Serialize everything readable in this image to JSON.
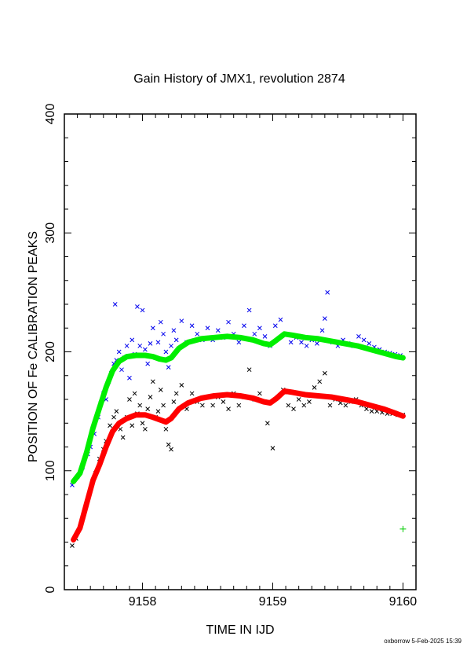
{
  "chart_data": {
    "type": "scatter",
    "title": "Gain History of JMX1, revolution 2874",
    "xlabel": "TIME IN IJD",
    "ylabel": "POSITION OF Fe CALIBRATION PEAKS",
    "xlim": [
      9157.4,
      9160.1
    ],
    "ylim": [
      0,
      400
    ],
    "x_ticks": [
      9158,
      9159,
      9160
    ],
    "x_tick_labels": [
      "9158",
      "9159",
      "9160"
    ],
    "y_ticks": [
      0,
      100,
      200,
      300,
      400
    ],
    "y_tick_labels": [
      "0",
      "100",
      "200",
      "300",
      "400"
    ],
    "footer": "oxborrow  5-Feb-2025 15:39",
    "series": [
      {
        "role": "fit",
        "color": "#00ee00",
        "points": [
          [
            9157.47,
            91
          ],
          [
            9157.52,
            98
          ],
          [
            9157.57,
            115
          ],
          [
            9157.62,
            136
          ],
          [
            9157.67,
            153
          ],
          [
            9157.72,
            170
          ],
          [
            9157.77,
            184
          ],
          [
            9157.82,
            192
          ],
          [
            9157.88,
            196
          ],
          [
            9157.95,
            197
          ],
          [
            9158.02,
            197
          ],
          [
            9158.08,
            196
          ],
          [
            9158.13,
            194
          ],
          [
            9158.18,
            193
          ],
          [
            9158.22,
            195
          ],
          [
            9158.28,
            203
          ],
          [
            9158.35,
            208
          ],
          [
            9158.45,
            211
          ],
          [
            9158.55,
            212
          ],
          [
            9158.65,
            213
          ],
          [
            9158.75,
            212
          ],
          [
            9158.85,
            210
          ],
          [
            9158.93,
            207
          ],
          [
            9158.98,
            206
          ],
          [
            9159.03,
            210
          ],
          [
            9159.09,
            215
          ],
          [
            9159.15,
            214
          ],
          [
            9159.25,
            212
          ],
          [
            9159.35,
            211
          ],
          [
            9159.45,
            209
          ],
          [
            9159.55,
            207
          ],
          [
            9159.65,
            205
          ],
          [
            9159.75,
            202
          ],
          [
            9159.85,
            199
          ],
          [
            9159.95,
            196
          ],
          [
            9160.0,
            195
          ]
        ]
      },
      {
        "role": "fit",
        "color": "#ff0000",
        "points": [
          [
            9157.47,
            42
          ],
          [
            9157.52,
            52
          ],
          [
            9157.57,
            72
          ],
          [
            9157.62,
            92
          ],
          [
            9157.67,
            105
          ],
          [
            9157.72,
            120
          ],
          [
            9157.77,
            133
          ],
          [
            9157.82,
            140
          ],
          [
            9157.88,
            144
          ],
          [
            9157.95,
            147
          ],
          [
            9158.02,
            147
          ],
          [
            9158.08,
            145
          ],
          [
            9158.13,
            143
          ],
          [
            9158.18,
            141
          ],
          [
            9158.22,
            144
          ],
          [
            9158.28,
            152
          ],
          [
            9158.35,
            157
          ],
          [
            9158.45,
            161
          ],
          [
            9158.55,
            163
          ],
          [
            9158.65,
            164
          ],
          [
            9158.75,
            163
          ],
          [
            9158.85,
            161
          ],
          [
            9158.93,
            158
          ],
          [
            9158.98,
            157
          ],
          [
            9159.03,
            161
          ],
          [
            9159.09,
            167
          ],
          [
            9159.15,
            166
          ],
          [
            9159.25,
            164
          ],
          [
            9159.35,
            163
          ],
          [
            9159.45,
            162
          ],
          [
            9159.55,
            160
          ],
          [
            9159.65,
            158
          ],
          [
            9159.75,
            155
          ],
          [
            9159.85,
            152
          ],
          [
            9159.95,
            148
          ],
          [
            9160.0,
            146
          ]
        ]
      },
      {
        "role": "upper-peak-measurements",
        "color": "#0000ee",
        "points": [
          [
            9157.46,
            88
          ],
          [
            9157.5,
            95
          ],
          [
            9157.54,
            103
          ],
          [
            9157.58,
            114
          ],
          [
            9157.6,
            120
          ],
          [
            9157.63,
            131
          ],
          [
            9157.66,
            145
          ],
          [
            9157.68,
            157
          ],
          [
            9157.7,
            165
          ],
          [
            9157.72,
            160
          ],
          [
            9157.74,
            175
          ],
          [
            9157.76,
            182
          ],
          [
            9157.78,
            190
          ],
          [
            9157.79,
            240
          ],
          [
            9157.8,
            193
          ],
          [
            9157.82,
            200
          ],
          [
            9157.84,
            185
          ],
          [
            9157.86,
            195
          ],
          [
            9157.88,
            205
          ],
          [
            9157.9,
            178
          ],
          [
            9157.92,
            210
          ],
          [
            9157.94,
            198
          ],
          [
            9157.96,
            238
          ],
          [
            9157.98,
            205
          ],
          [
            9158.0,
            235
          ],
          [
            9158.02,
            202
          ],
          [
            9158.04,
            190
          ],
          [
            9158.06,
            207
          ],
          [
            9158.08,
            220
          ],
          [
            9158.1,
            195
          ],
          [
            9158.12,
            208
          ],
          [
            9158.14,
            225
          ],
          [
            9158.16,
            215
          ],
          [
            9158.18,
            200
          ],
          [
            9158.2,
            187
          ],
          [
            9158.22,
            205
          ],
          [
            9158.24,
            218
          ],
          [
            9158.26,
            210
          ],
          [
            9158.3,
            226
          ],
          [
            9158.34,
            208
          ],
          [
            9158.38,
            222
          ],
          [
            9158.42,
            215
          ],
          [
            9158.46,
            210
          ],
          [
            9158.5,
            220
          ],
          [
            9158.54,
            210
          ],
          [
            9158.58,
            218
          ],
          [
            9158.62,
            212
          ],
          [
            9158.66,
            225
          ],
          [
            9158.7,
            215
          ],
          [
            9158.74,
            208
          ],
          [
            9158.78,
            222
          ],
          [
            9158.82,
            235
          ],
          [
            9158.86,
            215
          ],
          [
            9158.9,
            220
          ],
          [
            9158.94,
            213
          ],
          [
            9158.98,
            205
          ],
          [
            9159.02,
            222
          ],
          [
            9159.06,
            227
          ],
          [
            9159.1,
            215
          ],
          [
            9159.14,
            208
          ],
          [
            9159.18,
            212
          ],
          [
            9159.22,
            208
          ],
          [
            9159.26,
            205
          ],
          [
            9159.3,
            210
          ],
          [
            9159.34,
            207
          ],
          [
            9159.38,
            218
          ],
          [
            9159.4,
            228
          ],
          [
            9159.42,
            250
          ],
          [
            9159.46,
            208
          ],
          [
            9159.5,
            205
          ],
          [
            9159.54,
            210
          ],
          [
            9159.58,
            207
          ],
          [
            9159.62,
            205
          ],
          [
            9159.66,
            213
          ],
          [
            9159.7,
            210
          ],
          [
            9159.74,
            207
          ],
          [
            9159.78,
            204
          ],
          [
            9159.82,
            202
          ],
          [
            9159.86,
            200
          ],
          [
            9159.9,
            199
          ],
          [
            9159.94,
            198
          ],
          [
            9159.98,
            197
          ]
        ]
      },
      {
        "role": "lower-peak-measurements",
        "color": "#000000",
        "points": [
          [
            9157.46,
            37
          ],
          [
            9157.49,
            43
          ],
          [
            9157.52,
            52
          ],
          [
            9157.55,
            64
          ],
          [
            9157.58,
            76
          ],
          [
            9157.61,
            88
          ],
          [
            9157.64,
            98
          ],
          [
            9157.67,
            110
          ],
          [
            9157.7,
            118
          ],
          [
            9157.72,
            125
          ],
          [
            9157.75,
            138
          ],
          [
            9157.78,
            145
          ],
          [
            9157.8,
            150
          ],
          [
            9157.83,
            135
          ],
          [
            9157.85,
            128
          ],
          [
            9157.88,
            145
          ],
          [
            9157.9,
            160
          ],
          [
            9157.92,
            138
          ],
          [
            9157.94,
            165
          ],
          [
            9157.96,
            148
          ],
          [
            9157.98,
            155
          ],
          [
            9158.0,
            140
          ],
          [
            9158.02,
            135
          ],
          [
            9158.04,
            152
          ],
          [
            9158.06,
            162
          ],
          [
            9158.08,
            175
          ],
          [
            9158.1,
            145
          ],
          [
            9158.12,
            150
          ],
          [
            9158.14,
            168
          ],
          [
            9158.16,
            155
          ],
          [
            9158.18,
            135
          ],
          [
            9158.2,
            122
          ],
          [
            9158.22,
            118
          ],
          [
            9158.24,
            158
          ],
          [
            9158.26,
            165
          ],
          [
            9158.3,
            172
          ],
          [
            9158.34,
            152
          ],
          [
            9158.38,
            165
          ],
          [
            9158.42,
            158
          ],
          [
            9158.46,
            155
          ],
          [
            9158.5,
            162
          ],
          [
            9158.54,
            155
          ],
          [
            9158.58,
            162
          ],
          [
            9158.62,
            158
          ],
          [
            9158.66,
            152
          ],
          [
            9158.7,
            165
          ],
          [
            9158.74,
            155
          ],
          [
            9158.78,
            162
          ],
          [
            9158.82,
            185
          ],
          [
            9158.86,
            160
          ],
          [
            9158.9,
            165
          ],
          [
            9158.94,
            158
          ],
          [
            9158.96,
            140
          ],
          [
            9159.0,
            119
          ],
          [
            9159.04,
            162
          ],
          [
            9159.08,
            168
          ],
          [
            9159.12,
            155
          ],
          [
            9159.16,
            152
          ],
          [
            9159.2,
            160
          ],
          [
            9159.24,
            155
          ],
          [
            9159.28,
            158
          ],
          [
            9159.32,
            170
          ],
          [
            9159.36,
            175
          ],
          [
            9159.4,
            182
          ],
          [
            9159.44,
            155
          ],
          [
            9159.48,
            160
          ],
          [
            9159.52,
            157
          ],
          [
            9159.56,
            155
          ],
          [
            9159.6,
            158
          ],
          [
            9159.64,
            160
          ],
          [
            9159.68,
            155
          ],
          [
            9159.72,
            152
          ],
          [
            9159.76,
            150
          ],
          [
            9159.8,
            150
          ],
          [
            9159.84,
            149
          ],
          [
            9159.88,
            148
          ],
          [
            9159.92,
            148
          ],
          [
            9159.96,
            147
          ],
          [
            9160.0,
            147
          ]
        ]
      },
      {
        "role": "marker",
        "color": "#00cc00",
        "points": [
          [
            9160.0,
            51
          ]
        ]
      }
    ]
  }
}
